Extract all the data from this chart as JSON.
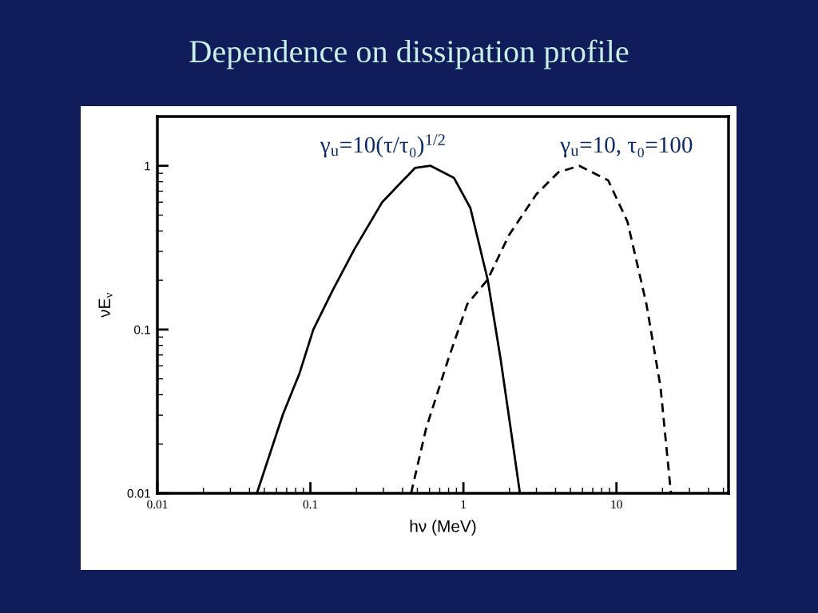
{
  "chart_data": {
    "type": "line",
    "title": "Dependence on dissipation profile",
    "xlabel": "hν (MeV)",
    "ylabel": "νE$_{ν}$",
    "log": "xy",
    "grid": false,
    "legend": false,
    "xlim": [
      0.01,
      54
    ],
    "xticks": [
      0.01,
      0.1,
      1,
      10
    ],
    "ylim": [
      0.01,
      2
    ],
    "yticks": [
      0.01,
      0.1,
      1
    ],
    "series": [
      {
        "name": "γ$_{u}$=10(τ/τ₀)$^{1/2}$",
        "color": "#000000",
        "line_style": "solid",
        "x": [
          0.0447,
          0.0662,
          0.085,
          0.1045,
          0.1395,
          0.194,
          0.294,
          0.482,
          0.61,
          0.866,
          1.11,
          1.44,
          1.75,
          2.07,
          2.34
        ],
        "values": [
          0.01,
          0.0304,
          0.0542,
          0.1,
          0.173,
          0.31,
          0.598,
          0.97,
          1.0,
          0.846,
          0.553,
          0.202,
          0.0659,
          0.0223,
          0.01
        ]
      },
      {
        "name": "γ$_{u}$=10, τ₀=100",
        "color": "#000000",
        "line_style": "dashed",
        "x": [
          0.455,
          0.571,
          0.796,
          1.06,
          1.44,
          1.98,
          3.0,
          4.18,
          5.71,
          8.83,
          11.8,
          15.7,
          19.4,
          22.7
        ],
        "values": [
          0.01,
          0.025,
          0.0659,
          0.143,
          0.202,
          0.376,
          0.671,
          0.914,
          1.0,
          0.815,
          0.456,
          0.143,
          0.0447,
          0.01
        ]
      }
    ]
  }
}
